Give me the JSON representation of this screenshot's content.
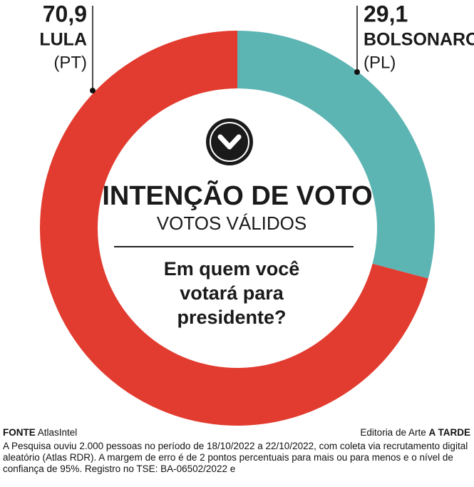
{
  "chart_data": {
    "type": "pie",
    "donut": true,
    "title": "INTENÇÃO DE VOTO",
    "subtitle": "VOTOS VÁLIDOS",
    "question": "Em quem você votará para presidente?",
    "categories": [
      "LULA",
      "BOLSONARO"
    ],
    "parties": [
      "(PT)",
      "(PL)"
    ],
    "values": [
      70.9,
      29.1
    ],
    "value_labels": [
      "70,9",
      "29,1"
    ],
    "colors": [
      "#e23b2f",
      "#5db5b3"
    ]
  },
  "footer": {
    "source_label": "FONTE",
    "source": "AtlasIntel",
    "credit_label": "Editoria de Arte",
    "credit": "A TARDE",
    "note": "A Pesquisa ouviu 2.000 pessoas  no período de 18/10/2022 a 22/10/2022, com coleta via recrutamento digital aleatório (Atlas RDR). A margem de erro é de 2 pontos percentuais para mais ou para menos e o nível de confiança de 95%. Registro no TSE: BA-06502/2022 e"
  }
}
